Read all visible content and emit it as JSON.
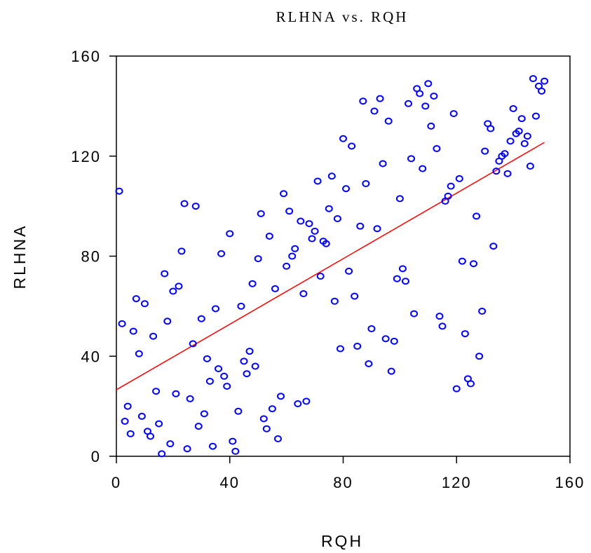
{
  "chart_data": {
    "type": "scatter",
    "title": "RLHNA vs. RQH",
    "xlabel": "RQH",
    "ylabel": "RLHNA",
    "xlim": [
      0,
      160
    ],
    "ylim": [
      0,
      160
    ],
    "xticks": [
      0,
      40,
      80,
      120,
      160
    ],
    "yticks": [
      0,
      40,
      80,
      120,
      160
    ],
    "x_tick_labels": [
      "0",
      "40",
      "80",
      "120",
      "160"
    ],
    "y_tick_labels": [
      "0",
      "40",
      "80",
      "120",
      "160"
    ],
    "grid": false,
    "marker": "circle-open",
    "colors": {
      "points": "#0000ff",
      "fit_line": "#ff0000",
      "frame": "#000000"
    },
    "fit_line": {
      "x": [
        0,
        151
      ],
      "y": [
        26.6,
        125.5
      ]
    },
    "points": [
      [
        1,
        106
      ],
      [
        2,
        53
      ],
      [
        3,
        14
      ],
      [
        4,
        20
      ],
      [
        5,
        9
      ],
      [
        6,
        50
      ],
      [
        7,
        63
      ],
      [
        8,
        41
      ],
      [
        9,
        16
      ],
      [
        10,
        61
      ],
      [
        11,
        10
      ],
      [
        12,
        8
      ],
      [
        13,
        48
      ],
      [
        14,
        26
      ],
      [
        15,
        13
      ],
      [
        16,
        1
      ],
      [
        17,
        73
      ],
      [
        18,
        54
      ],
      [
        19,
        5
      ],
      [
        20,
        66
      ],
      [
        21,
        25
      ],
      [
        22,
        68
      ],
      [
        23,
        82
      ],
      [
        24,
        101
      ],
      [
        25,
        3
      ],
      [
        26,
        23
      ],
      [
        27,
        45
      ],
      [
        28,
        100
      ],
      [
        29,
        12
      ],
      [
        30,
        55
      ],
      [
        31,
        17
      ],
      [
        32,
        39
      ],
      [
        33,
        30
      ],
      [
        34,
        4
      ],
      [
        35,
        59
      ],
      [
        36,
        35
      ],
      [
        37,
        81
      ],
      [
        38,
        32
      ],
      [
        39,
        28
      ],
      [
        40,
        89
      ],
      [
        41,
        6
      ],
      [
        42,
        2
      ],
      [
        43,
        18
      ],
      [
        44,
        60
      ],
      [
        45,
        38
      ],
      [
        46,
        33
      ],
      [
        47,
        42
      ],
      [
        48,
        69
      ],
      [
        49,
        36
      ],
      [
        50,
        79
      ],
      [
        51,
        97
      ],
      [
        52,
        15
      ],
      [
        53,
        11
      ],
      [
        54,
        88
      ],
      [
        55,
        19
      ],
      [
        56,
        67
      ],
      [
        57,
        7
      ],
      [
        58,
        24
      ],
      [
        59,
        105
      ],
      [
        60,
        76
      ],
      [
        61,
        98
      ],
      [
        62,
        80
      ],
      [
        63,
        83
      ],
      [
        64,
        21
      ],
      [
        65,
        94
      ],
      [
        66,
        65
      ],
      [
        67,
        22
      ],
      [
        68,
        93
      ],
      [
        69,
        87
      ],
      [
        70,
        90
      ],
      [
        71,
        110
      ],
      [
        72,
        72
      ],
      [
        73,
        86
      ],
      [
        74,
        85
      ],
      [
        75,
        99
      ],
      [
        76,
        112
      ],
      [
        77,
        62
      ],
      [
        78,
        95
      ],
      [
        79,
        43
      ],
      [
        80,
        127
      ],
      [
        81,
        107
      ],
      [
        82,
        74
      ],
      [
        83,
        124
      ],
      [
        84,
        64
      ],
      [
        85,
        44
      ],
      [
        86,
        92
      ],
      [
        87,
        142
      ],
      [
        88,
        109
      ],
      [
        89,
        37
      ],
      [
        90,
        51
      ],
      [
        91,
        138
      ],
      [
        92,
        91
      ],
      [
        93,
        143
      ],
      [
        94,
        117
      ],
      [
        95,
        47
      ],
      [
        96,
        134
      ],
      [
        97,
        34
      ],
      [
        98,
        46
      ],
      [
        99,
        71
      ],
      [
        100,
        103
      ],
      [
        101,
        75
      ],
      [
        102,
        70
      ],
      [
        103,
        141
      ],
      [
        104,
        119
      ],
      [
        105,
        57
      ],
      [
        106,
        147
      ],
      [
        107,
        145
      ],
      [
        108,
        115
      ],
      [
        109,
        140
      ],
      [
        110,
        149
      ],
      [
        111,
        132
      ],
      [
        112,
        144
      ],
      [
        113,
        123
      ],
      [
        114,
        56
      ],
      [
        115,
        52
      ],
      [
        116,
        102
      ],
      [
        117,
        104
      ],
      [
        118,
        108
      ],
      [
        119,
        137
      ],
      [
        120,
        27
      ],
      [
        121,
        111
      ],
      [
        122,
        78
      ],
      [
        123,
        49
      ],
      [
        124,
        31
      ],
      [
        125,
        29
      ],
      [
        126,
        77
      ],
      [
        127,
        96
      ],
      [
        128,
        40
      ],
      [
        129,
        58
      ],
      [
        130,
        122
      ],
      [
        131,
        133
      ],
      [
        132,
        131
      ],
      [
        133,
        84
      ],
      [
        134,
        114
      ],
      [
        135,
        118
      ],
      [
        136,
        120
      ],
      [
        137,
        121
      ],
      [
        138,
        113
      ],
      [
        139,
        126
      ],
      [
        140,
        139
      ],
      [
        141,
        129
      ],
      [
        142,
        130
      ],
      [
        143,
        135
      ],
      [
        144,
        125
      ],
      [
        145,
        128
      ],
      [
        146,
        116
      ],
      [
        147,
        151
      ],
      [
        148,
        136
      ],
      [
        149,
        148
      ],
      [
        150,
        146
      ],
      [
        151,
        150
      ]
    ]
  }
}
